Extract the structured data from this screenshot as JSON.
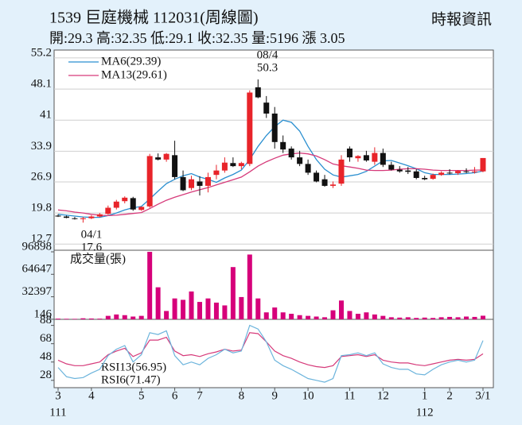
{
  "header": {
    "title": "1539  巨庭機械 112031(周線圖)",
    "source": "時報資訊",
    "quote": "開:29.3 高:32.35 低:29.1 收:32.35 量:5196 漲 3.05"
  },
  "chart_data": [
    {
      "type": "candlestick",
      "ylim": [
        11.3,
        57.0
      ],
      "yticks": [
        12.7,
        19.8,
        26.9,
        33.9,
        41.0,
        48.1,
        55.2
      ],
      "grid": true,
      "up_color": "#e8242a",
      "down_color": "#111111",
      "open": [
        19.2,
        19.0,
        18.6,
        18.4,
        18.6,
        19.0,
        19.6,
        21.0,
        22.5,
        23.2,
        20.5,
        21.3,
        32.5,
        32.0,
        33.0,
        28.0,
        25.5,
        27.0,
        26.0,
        28.5,
        29.5,
        31.2,
        30.5,
        31.0,
        48.5,
        45.0,
        42.5,
        36.0,
        34.5,
        32.5,
        31.0,
        29.0,
        27.5,
        26.0,
        26.5,
        34.5,
        32.3,
        33.0,
        31.5,
        33.5,
        30.8,
        29.7,
        29.5,
        29.3,
        27.8,
        27.6,
        28.5,
        29.0,
        28.9,
        29.3,
        29.2,
        29.3
      ],
      "high": [
        19.5,
        19.2,
        18.9,
        18.9,
        19.3,
        19.8,
        21.5,
        22.8,
        23.6,
        23.5,
        21.3,
        33.3,
        33.4,
        33.5,
        36.3,
        29.5,
        28.3,
        28.2,
        29.0,
        30.8,
        32.5,
        32.5,
        31.5,
        47.8,
        50.3,
        46.5,
        44.0,
        37.5,
        35.0,
        34.0,
        32.0,
        29.5,
        28.5,
        27.0,
        33.0,
        35.0,
        33.0,
        34.0,
        34.8,
        34.5,
        31.5,
        30.5,
        30.3,
        29.8,
        28.3,
        28.8,
        29.3,
        29.8,
        29.6,
        30.0,
        30.3,
        32.35
      ],
      "low": [
        18.9,
        18.6,
        18.3,
        17.6,
        18.4,
        18.8,
        19.4,
        20.6,
        22.0,
        20.3,
        20.3,
        21.0,
        31.8,
        31.5,
        27.5,
        24.8,
        25.0,
        23.8,
        24.5,
        27.5,
        29.0,
        30.3,
        29.8,
        30.5,
        46.0,
        41.5,
        34.5,
        33.5,
        32.0,
        30.5,
        28.5,
        26.8,
        25.8,
        25.5,
        26.0,
        31.5,
        31.5,
        31.5,
        30.8,
        30.3,
        29.5,
        29.0,
        28.7,
        27.5,
        27.3,
        27.4,
        28.3,
        28.6,
        28.5,
        28.9,
        28.8,
        29.1
      ],
      "close": [
        19.0,
        18.7,
        18.5,
        18.6,
        19.0,
        19.5,
        21.0,
        22.4,
        23.3,
        20.6,
        21.2,
        32.8,
        32.0,
        33.3,
        28.0,
        25.0,
        27.5,
        26.0,
        28.0,
        29.5,
        31.3,
        30.5,
        31.2,
        47.3,
        46.2,
        42.5,
        36.0,
        34.3,
        32.5,
        31.0,
        29.0,
        27.0,
        26.0,
        26.3,
        32.0,
        32.5,
        32.8,
        31.8,
        33.5,
        30.8,
        29.7,
        29.3,
        29.2,
        27.8,
        27.5,
        28.5,
        29.0,
        28.9,
        29.4,
        29.2,
        29.3,
        32.35
      ],
      "lines": [
        {
          "name": "MA6(29.39)",
          "color": "#2a8fd0",
          "values": [
            19.5,
            19.3,
            19.1,
            18.9,
            18.8,
            18.8,
            19.2,
            19.8,
            20.5,
            21.0,
            21.3,
            23.0,
            24.8,
            26.5,
            27.5,
            28.3,
            28.8,
            28.0,
            27.5,
            26.8,
            27.8,
            28.6,
            29.6,
            32.0,
            35.0,
            37.5,
            39.5,
            41.0,
            40.5,
            38.5,
            35.0,
            32.0,
            29.8,
            28.5,
            28.0,
            28.3,
            28.6,
            29.3,
            30.5,
            31.7,
            31.8,
            31.2,
            30.6,
            29.9,
            29.0,
            28.6,
            28.6,
            28.6,
            28.7,
            28.8,
            29.0,
            29.39
          ]
        },
        {
          "name": "MA13(29.61)",
          "color": "#d63a7a",
          "values": [
            20.5,
            20.3,
            20.0,
            19.8,
            19.5,
            19.3,
            19.2,
            19.3,
            19.5,
            19.7,
            19.9,
            20.8,
            21.8,
            22.7,
            23.4,
            24.0,
            24.6,
            25.1,
            25.6,
            26.2,
            26.8,
            27.4,
            28.0,
            29.2,
            30.5,
            31.5,
            32.3,
            33.0,
            33.3,
            33.5,
            33.3,
            32.8,
            32.0,
            31.0,
            30.6,
            30.3,
            30.0,
            29.6,
            29.5,
            29.5,
            29.6,
            29.8,
            29.9,
            29.9,
            29.8,
            29.6,
            29.5,
            29.5,
            29.5,
            29.5,
            29.6,
            29.61
          ]
        }
      ],
      "annotations": [
        "08/4",
        "50.3",
        "04/1",
        "17.6"
      ]
    },
    {
      "type": "bar",
      "title": "成交量(張)",
      "color": "#d6007a",
      "ylim": [
        0,
        96898
      ],
      "yticks": [
        146,
        32397,
        64647,
        96898
      ],
      "values": [
        1000,
        800,
        700,
        1500,
        1200,
        1000,
        5000,
        7000,
        6000,
        4000,
        5000,
        96898,
        46000,
        12000,
        30000,
        28000,
        40000,
        25000,
        30000,
        24000,
        20000,
        75000,
        32000,
        93000,
        30000,
        10000,
        17000,
        10000,
        8000,
        6000,
        5000,
        4000,
        3000,
        13000,
        27000,
        12000,
        8000,
        10000,
        7000,
        5000,
        3000,
        2500,
        3000,
        2000,
        2500,
        2000,
        3000,
        3500,
        3000,
        4000,
        3500,
        5196
      ]
    },
    {
      "type": "line",
      "ylim": [
        20,
        92
      ],
      "yticks": [
        28,
        48,
        68,
        88
      ],
      "categories": [
        "3",
        null,
        null,
        null,
        "4",
        null,
        null,
        null,
        null,
        null,
        "5",
        null,
        null,
        null,
        "6",
        null,
        null,
        "7",
        null,
        null,
        null,
        null,
        "8",
        null,
        null,
        null,
        "9",
        null,
        null,
        null,
        "10",
        null,
        null,
        null,
        null,
        "11",
        null,
        null,
        null,
        "12",
        null,
        null,
        null,
        null,
        "1",
        null,
        null,
        "2",
        null,
        null,
        null,
        "3/1"
      ],
      "sub_categories": [
        "111",
        null,
        null,
        null,
        null,
        null,
        null,
        null,
        null,
        null,
        null,
        null,
        null,
        null,
        null,
        null,
        null,
        null,
        null,
        null,
        null,
        null,
        null,
        null,
        null,
        null,
        null,
        null,
        null,
        null,
        null,
        null,
        null,
        null,
        null,
        null,
        null,
        null,
        null,
        null,
        null,
        null,
        null,
        null,
        "112",
        null,
        null,
        null,
        null,
        null,
        null,
        null
      ],
      "series": [
        {
          "name": "RSI13(56.95)",
          "color": "#d63a7a",
          "values": [
            50,
            46,
            44,
            44,
            46,
            48,
            56,
            60,
            63,
            54,
            58,
            72,
            72,
            75,
            60,
            55,
            56,
            54,
            57,
            59,
            62,
            60,
            61,
            80,
            79,
            70,
            60,
            55,
            52,
            48,
            45,
            43,
            42,
            44,
            54,
            55,
            56,
            54,
            56,
            50,
            48,
            47,
            47,
            45,
            44,
            46,
            48,
            50,
            51,
            50,
            51,
            56.95
          ]
        },
        {
          "name": "RSI6(71.47)",
          "color": "#6cb4dc",
          "values": [
            42,
            32,
            30,
            31,
            36,
            40,
            55,
            62,
            66,
            48,
            56,
            80,
            78,
            82,
            55,
            45,
            48,
            45,
            52,
            56,
            62,
            58,
            60,
            88,
            84,
            70,
            50,
            44,
            40,
            35,
            30,
            28,
            26,
            30,
            55,
            56,
            58,
            55,
            58,
            46,
            42,
            40,
            40,
            35,
            34,
            40,
            45,
            48,
            50,
            48,
            50,
            71.47
          ]
        }
      ]
    }
  ]
}
